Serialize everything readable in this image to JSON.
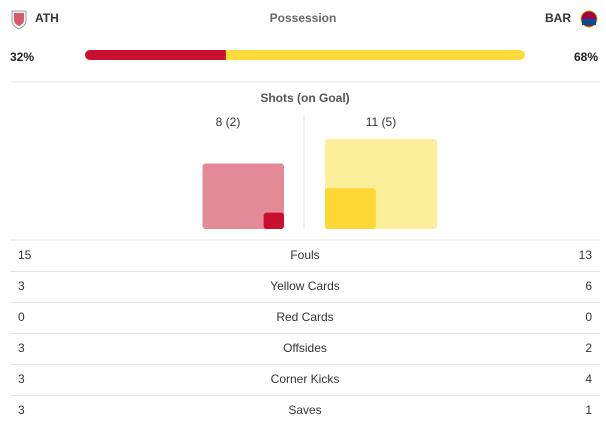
{
  "header": {
    "home_team": "ATH",
    "away_team": "BAR"
  },
  "possession": {
    "title": "Possession",
    "home": {
      "value": 32,
      "label": "32%"
    },
    "away": {
      "value": 68,
      "label": "68%"
    }
  },
  "shots": {
    "title": "Shots (on Goal)",
    "home": {
      "label": "8 (2)",
      "total": 8,
      "on_goal": 2
    },
    "away": {
      "label": "11 (5)",
      "total": 11,
      "on_goal": 5
    }
  },
  "stats": [
    {
      "home": 15,
      "name": "Fouls",
      "away": 13
    },
    {
      "home": 3,
      "name": "Yellow Cards",
      "away": 6
    },
    {
      "home": 0,
      "name": "Red Cards",
      "away": 0
    },
    {
      "home": 3,
      "name": "Offsides",
      "away": 2
    },
    {
      "home": 3,
      "name": "Corner Kicks",
      "away": 4
    },
    {
      "home": 3,
      "name": "Saves",
      "away": 1
    }
  ]
}
